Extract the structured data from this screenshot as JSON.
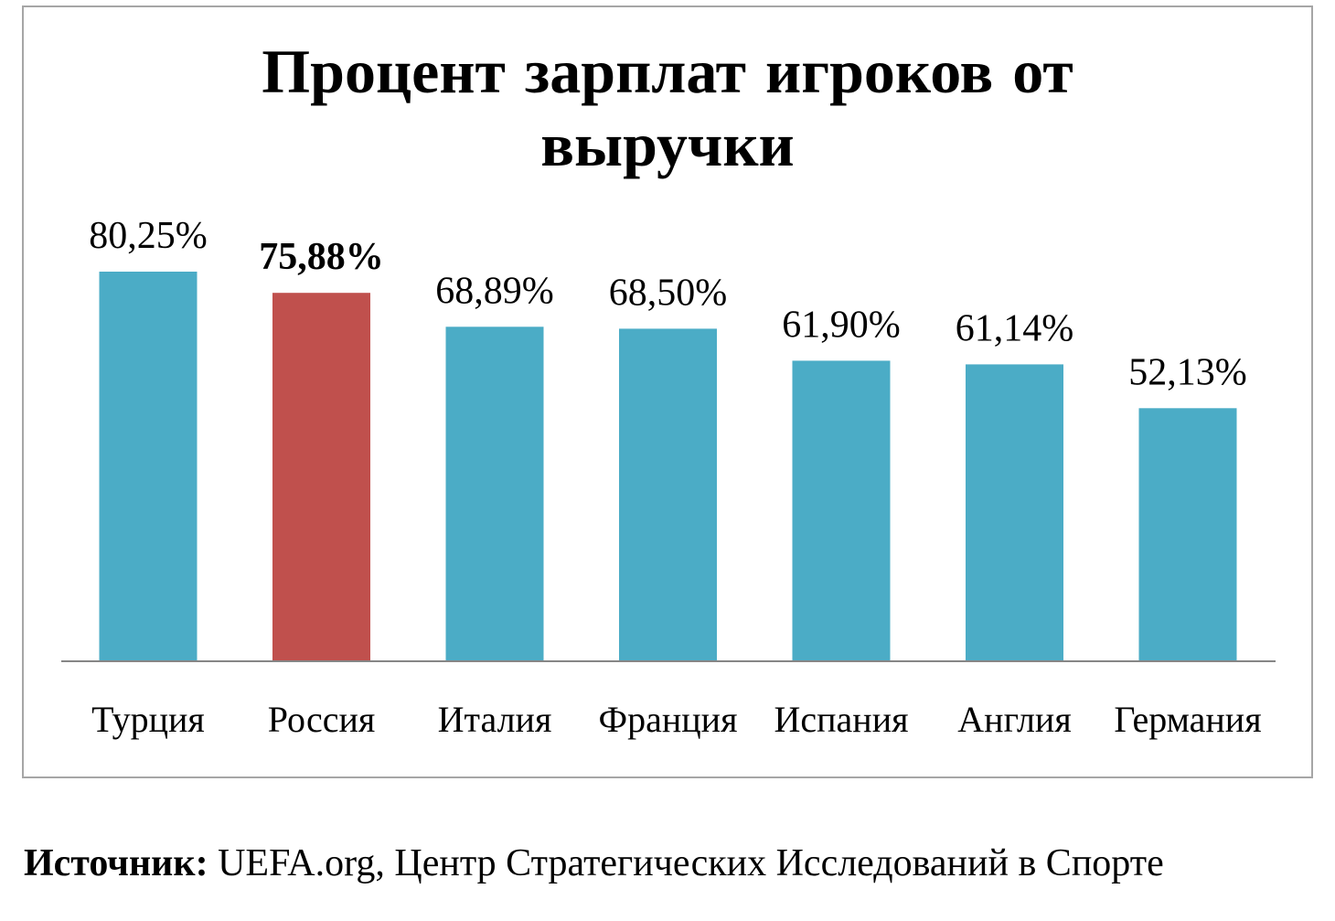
{
  "chart_data": {
    "type": "bar",
    "title": "Процент зарплат игроков от выручки",
    "categories": [
      "Турция",
      "Россия",
      "Италия",
      "Франция",
      "Испания",
      "Англия",
      "Германия"
    ],
    "values": [
      80.25,
      75.88,
      68.89,
      68.5,
      61.9,
      61.14,
      52.13
    ],
    "data_labels": [
      "80,25%",
      "75,88%",
      "68,89%",
      "68,50%",
      "61,90%",
      "61,14%",
      "52,13%"
    ],
    "highlight_index": 1,
    "colors": {
      "bar": "#4bacc6",
      "highlight": "#c0504d",
      "axis": "#868686"
    },
    "ylim": [
      0,
      80.25
    ],
    "xlabel": "",
    "ylabel": "",
    "grid": false,
    "legend": "none"
  },
  "source": {
    "label": "Источник:",
    "text": "UEFA.org, Центр Стратегических Исследований в Спорте"
  }
}
